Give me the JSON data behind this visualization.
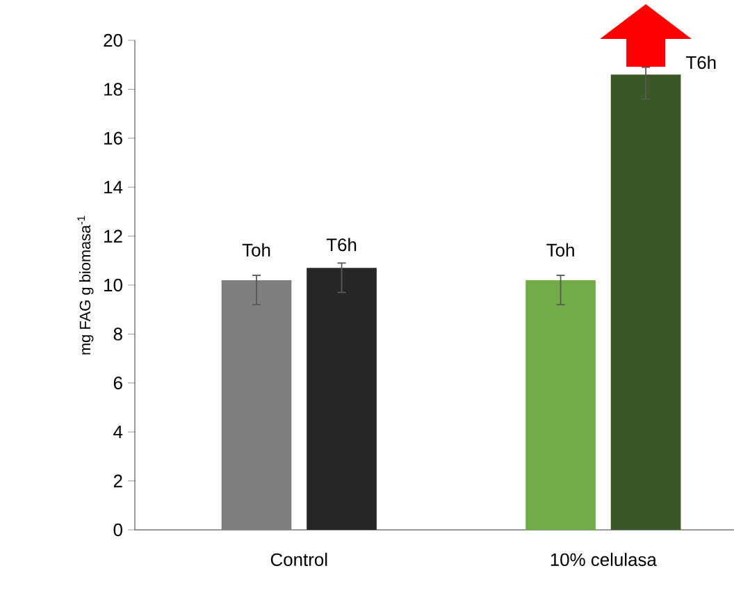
{
  "chart_data": {
    "type": "bar",
    "ylabel": "mg FAG g biomasa$^{-1}$",
    "categories": [
      "Control",
      "10% celulasa"
    ],
    "series": [
      {
        "name": "Toh",
        "colors": [
          "#7f7f7f",
          "#70ad47"
        ],
        "values": [
          10.2,
          10.2
        ],
        "errors": [
          [
            9.2,
            10.4
          ],
          [
            9.2,
            10.4
          ]
        ]
      },
      {
        "name": "T6h",
        "colors": [
          "#262626",
          "#3a5725"
        ],
        "values": [
          10.7,
          18.6
        ],
        "errors": [
          [
            9.7,
            10.9
          ],
          [
            17.6,
            18.9
          ]
        ]
      }
    ],
    "ylim": [
      0,
      20
    ],
    "yticks": [
      0,
      2,
      4,
      6,
      8,
      10,
      12,
      14,
      16,
      18,
      20
    ],
    "grid": false
  }
}
